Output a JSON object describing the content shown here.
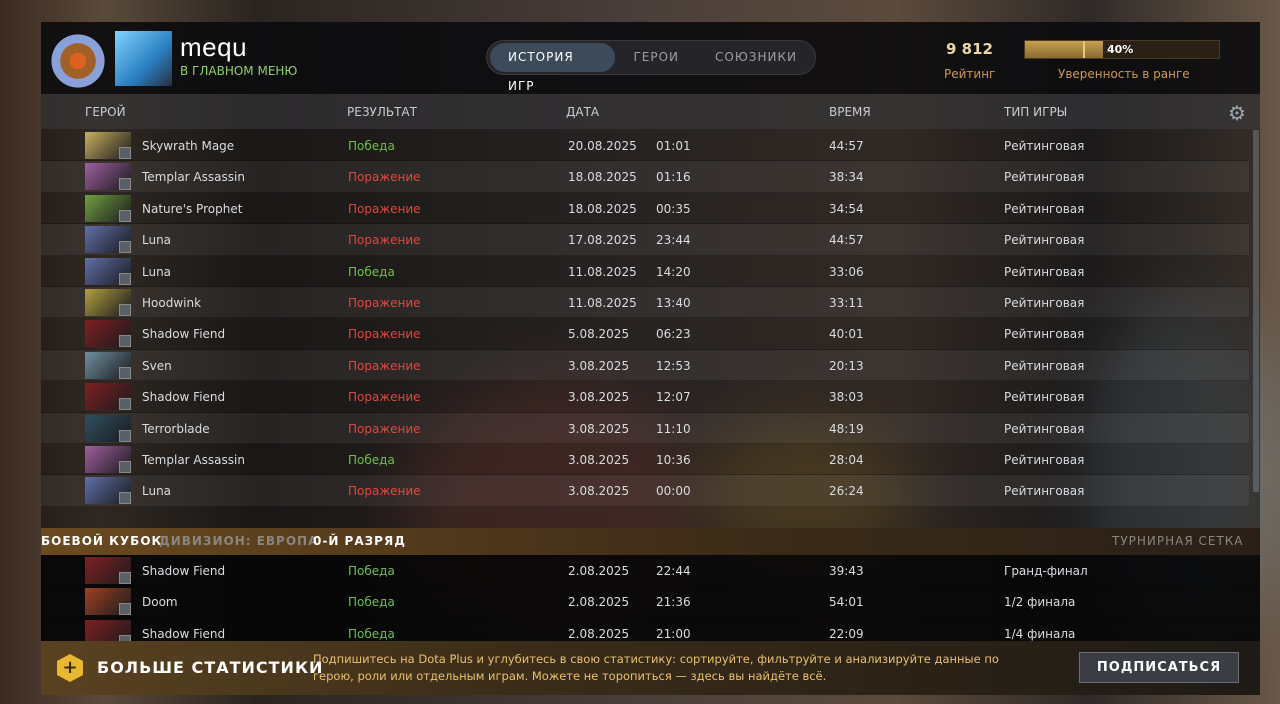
{
  "profile": {
    "name": "mequ",
    "status": "В ГЛАВНОМ МЕНЮ",
    "rating": "9 812",
    "rating_label": "Рейтинг",
    "confidence": "40%",
    "confidence_value": 0.4,
    "confidence_label": "Уверенность в ранге"
  },
  "tabs": [
    "ИСТОРИЯ ИГР",
    "ГЕРОИ",
    "СОЮЗНИКИ"
  ],
  "columns": {
    "hero": "ГЕРОЙ",
    "result": "РЕЗУЛЬТАТ",
    "date": "ДАТА",
    "duration": "ВРЕМЯ",
    "type": "ТИП ИГРЫ"
  },
  "matches": [
    {
      "hero": "Skywrath Mage",
      "result": "Победа",
      "win": true,
      "date": "20.08.2025",
      "time": "01:01",
      "duration": "44:57",
      "type": "Рейтинговая",
      "color": "#c8b060"
    },
    {
      "hero": "Templar Assassin",
      "result": "Поражение",
      "win": false,
      "date": "18.08.2025",
      "time": "01:16",
      "duration": "38:34",
      "type": "Рейтинговая",
      "color": "#a060a0"
    },
    {
      "hero": "Nature's Prophet",
      "result": "Поражение",
      "win": false,
      "date": "18.08.2025",
      "time": "00:35",
      "duration": "34:54",
      "type": "Рейтинговая",
      "color": "#70a040"
    },
    {
      "hero": "Luna",
      "result": "Поражение",
      "win": false,
      "date": "17.08.2025",
      "time": "23:44",
      "duration": "44:57",
      "type": "Рейтинговая",
      "color": "#6070a8"
    },
    {
      "hero": "Luna",
      "result": "Победа",
      "win": true,
      "date": "11.08.2025",
      "time": "14:20",
      "duration": "33:06",
      "type": "Рейтинговая",
      "color": "#6070a8"
    },
    {
      "hero": "Hoodwink",
      "result": "Поражение",
      "win": false,
      "date": "11.08.2025",
      "time": "13:40",
      "duration": "33:11",
      "type": "Рейтинговая",
      "color": "#b0a040"
    },
    {
      "hero": "Shadow Fiend",
      "result": "Поражение",
      "win": false,
      "date": "5.08.2025",
      "time": "06:23",
      "duration": "40:01",
      "type": "Рейтинговая",
      "color": "#802020"
    },
    {
      "hero": "Sven",
      "result": "Поражение",
      "win": false,
      "date": "3.08.2025",
      "time": "12:53",
      "duration": "20:13",
      "type": "Рейтинговая",
      "color": "#7090a0"
    },
    {
      "hero": "Shadow Fiend",
      "result": "Поражение",
      "win": false,
      "date": "3.08.2025",
      "time": "12:07",
      "duration": "38:03",
      "type": "Рейтинговая",
      "color": "#802020"
    },
    {
      "hero": "Terrorblade",
      "result": "Поражение",
      "win": false,
      "date": "3.08.2025",
      "time": "11:10",
      "duration": "48:19",
      "type": "Рейтинговая",
      "color": "#305060"
    },
    {
      "hero": "Templar Assassin",
      "result": "Победа",
      "win": true,
      "date": "3.08.2025",
      "time": "10:36",
      "duration": "28:04",
      "type": "Рейтинговая",
      "color": "#a060a0"
    },
    {
      "hero": "Luna",
      "result": "Поражение",
      "win": false,
      "date": "3.08.2025",
      "time": "00:00",
      "duration": "26:24",
      "type": "Рейтинговая",
      "color": "#6070a8"
    }
  ],
  "cup": {
    "title": "БОЕВОЙ КУБОК",
    "division": "ДИВИЗИОН: ЕВРОПА",
    "tier": "0-Й РАЗРЯД",
    "bracket": "ТУРНИРНАЯ СЕТКА",
    "matches": [
      {
        "hero": "Shadow Fiend",
        "result": "Победа",
        "win": true,
        "date": "2.08.2025",
        "time": "22:44",
        "duration": "39:43",
        "type": "Гранд-финал",
        "color": "#802020"
      },
      {
        "hero": "Doom",
        "result": "Победа",
        "win": true,
        "date": "2.08.2025",
        "time": "21:36",
        "duration": "54:01",
        "type": "1/2 финала",
        "color": "#a04020"
      },
      {
        "hero": "Shadow Fiend",
        "result": "Победа",
        "win": true,
        "date": "2.08.2025",
        "time": "21:00",
        "duration": "22:09",
        "type": "1/4 финала",
        "color": "#802020"
      }
    ]
  },
  "promo": {
    "title": "БОЛЬШЕ СТАТИСТИКИ",
    "text": "Подпишитесь на Dota Plus и углубитесь в свою статистику: сортируйте, фильтруйте и анализируйте данные по герою, роли или отдельным играм. Можете не торопиться — здесь вы найдёте всё.",
    "button": "ПОДПИСАТЬСЯ"
  }
}
